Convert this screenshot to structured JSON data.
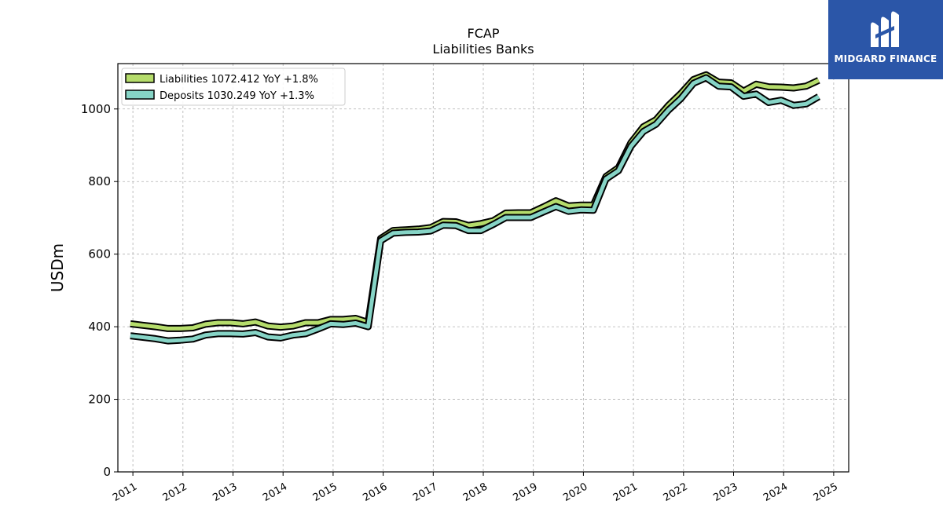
{
  "chart_data": {
    "type": "line",
    "title": "FCAP",
    "subtitle": "Liabilities Banks",
    "ylabel": "USDm",
    "ylim": [
      0,
      1125
    ],
    "yticks": [
      0,
      200,
      400,
      600,
      800,
      1000
    ],
    "xlim": [
      2010.7,
      2025.3
    ],
    "xticks": [
      "2011",
      "2012",
      "2013",
      "2014",
      "2015",
      "2016",
      "2017",
      "2018",
      "2019",
      "2020",
      "2021",
      "2022",
      "2023",
      "2024",
      "2025"
    ],
    "grid": true,
    "legend_position": "top-left",
    "legend": [
      "Liabilities  1072.412 YoY +1.8%",
      "Deposits  1030.249 YoY +1.3%"
    ],
    "series": [
      {
        "name": "Liabilities",
        "color": "#b5dc6b",
        "x": [
          2010.95,
          2011.2,
          2011.45,
          2011.7,
          2011.95,
          2012.2,
          2012.45,
          2012.7,
          2012.95,
          2013.2,
          2013.45,
          2013.7,
          2013.95,
          2014.2,
          2014.45,
          2014.7,
          2014.95,
          2015.2,
          2015.45,
          2015.7,
          2015.95,
          2016.2,
          2016.45,
          2016.7,
          2016.95,
          2017.2,
          2017.45,
          2017.7,
          2017.95,
          2018.2,
          2018.45,
          2018.7,
          2018.95,
          2019.2,
          2019.45,
          2019.7,
          2019.95,
          2020.2,
          2020.45,
          2020.7,
          2020.95,
          2021.2,
          2021.45,
          2021.7,
          2021.95,
          2022.2,
          2022.45,
          2022.7,
          2022.95,
          2023.2,
          2023.45,
          2023.7,
          2023.95,
          2024.2,
          2024.45,
          2024.7
        ],
        "values": [
          408,
          404,
          400,
          395,
          395,
          397,
          407,
          411,
          411,
          408,
          413,
          402,
          399,
          402,
          411,
          411,
          420,
          420,
          423,
          412,
          643,
          665,
          667,
          669,
          673,
          690,
          689,
          679,
          684,
          692,
          713,
          714,
          714,
          730,
          747,
          733,
          735,
          735,
          814,
          838,
          907,
          951,
          970,
          1010,
          1043,
          1081,
          1094,
          1074,
          1072,
          1049,
          1068,
          1061,
          1060,
          1058,
          1063,
          1079
        ]
      },
      {
        "name": "Deposits",
        "color": "#86d4c6",
        "x": [
          2010.95,
          2011.2,
          2011.45,
          2011.7,
          2011.95,
          2012.2,
          2012.45,
          2012.7,
          2012.95,
          2013.2,
          2013.45,
          2013.7,
          2013.95,
          2014.2,
          2014.45,
          2014.7,
          2014.95,
          2015.2,
          2015.45,
          2015.7,
          2015.95,
          2016.2,
          2016.45,
          2016.7,
          2016.95,
          2017.2,
          2017.45,
          2017.7,
          2017.95,
          2018.2,
          2018.45,
          2018.7,
          2018.95,
          2019.2,
          2019.45,
          2019.7,
          2019.95,
          2020.2,
          2020.45,
          2020.7,
          2020.95,
          2021.2,
          2021.45,
          2021.7,
          2021.95,
          2022.2,
          2022.45,
          2022.7,
          2022.95,
          2023.2,
          2023.45,
          2023.7,
          2023.95,
          2024.2,
          2024.45,
          2024.7
        ],
        "values": [
          375,
          371,
          367,
          361,
          363,
          366,
          377,
          381,
          381,
          380,
          384,
          372,
          369,
          377,
          381,
          394,
          408,
          406,
          410,
          400,
          637,
          658,
          660,
          661,
          664,
          680,
          679,
          665,
          665,
          682,
          701,
          701,
          701,
          716,
          731,
          718,
          722,
          721,
          807,
          830,
          897,
          938,
          958,
          997,
          1029,
          1071,
          1086,
          1063,
          1061,
          1035,
          1041,
          1018,
          1024,
          1010,
          1014,
          1034
        ]
      }
    ]
  },
  "logo": {
    "text": "MIDGARD FINANCE",
    "background": "#2b56a8"
  }
}
